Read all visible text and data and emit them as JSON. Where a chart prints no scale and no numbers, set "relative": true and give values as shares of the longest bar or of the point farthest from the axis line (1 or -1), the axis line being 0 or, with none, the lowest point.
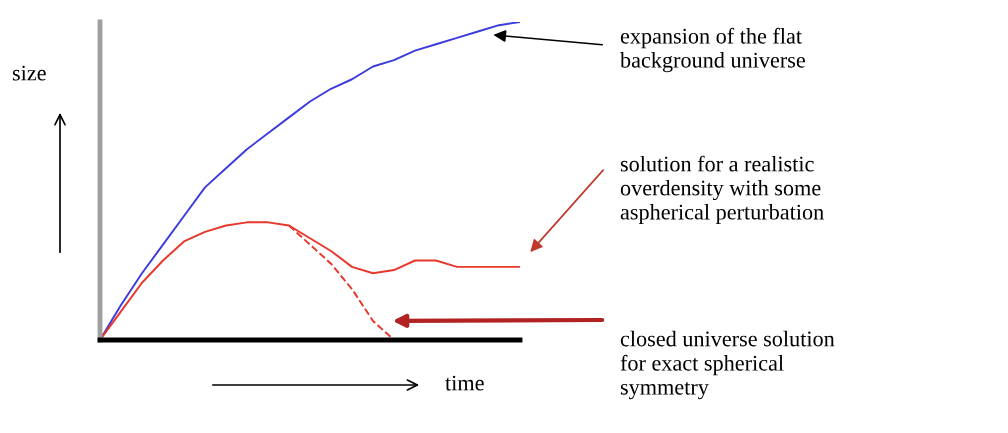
{
  "chart_data": {
    "type": "line",
    "relative": true,
    "xlabel": "time",
    "ylabel": "size",
    "categories": [
      null,
      null,
      null,
      null,
      null,
      null,
      null,
      null,
      null,
      null,
      null,
      null,
      null,
      null,
      null,
      null,
      null,
      null,
      null,
      null,
      null
    ],
    "series": [
      {
        "color": "#3c3cdc",
        "line_style": "solid",
        "values": [
          0,
          0.11,
          0.21,
          0.3,
          0.39,
          0.48,
          0.54,
          0.6,
          0.65,
          0.7,
          0.75,
          0.79,
          0.82,
          0.86,
          0.88,
          0.91,
          0.93,
          0.95,
          0.97,
          0.99,
          1
        ]
      },
      {
        "color": "#e8372b",
        "line_style": "solid",
        "values": [
          0,
          0.09,
          0.18,
          0.25,
          0.31,
          0.34,
          0.36,
          0.37,
          0.37,
          0.36,
          0.32,
          0.28,
          0.23,
          0.21,
          0.22,
          0.25,
          0.25,
          0.23,
          0.23,
          0.23,
          0.23
        ]
      },
      {
        "color": "#e8372b",
        "line_style": "dashed",
        "values": [
          null,
          null,
          null,
          null,
          null,
          null,
          null,
          null,
          null,
          0.36,
          0.3,
          0.24,
          0.16,
          0.06,
          0,
          null,
          null,
          null,
          null,
          null,
          null
        ]
      }
    ],
    "annotations": [
      "expansion of the flat\nbackground universe",
      "solution for a realistic\noverdensity with some\naspherical perturbation",
      "closed universe solution\nfor exact spherical\nsymmetry"
    ],
    "grid": false,
    "legend": false
  }
}
